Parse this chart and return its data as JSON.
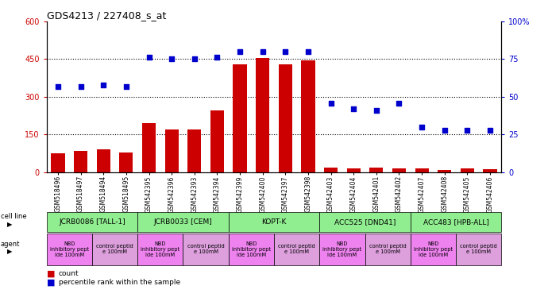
{
  "title": "GDS4213 / 227408_s_at",
  "samples": [
    "GSM518496",
    "GSM518497",
    "GSM518494",
    "GSM518495",
    "GSM542395",
    "GSM542396",
    "GSM542393",
    "GSM542394",
    "GSM542399",
    "GSM542400",
    "GSM542397",
    "GSM542398",
    "GSM542403",
    "GSM542404",
    "GSM542401",
    "GSM542402",
    "GSM542407",
    "GSM542408",
    "GSM542405",
    "GSM542406"
  ],
  "counts": [
    75,
    85,
    90,
    78,
    195,
    170,
    170,
    245,
    430,
    455,
    430,
    445,
    20,
    15,
    20,
    15,
    15,
    10,
    15,
    12
  ],
  "percentiles": [
    57,
    57,
    58,
    57,
    76,
    75,
    75,
    76,
    80,
    80,
    80,
    80,
    46,
    42,
    41,
    46,
    30,
    28,
    28,
    28
  ],
  "cell_lines": [
    {
      "label": "JCRB0086 [TALL-1]",
      "start": 0,
      "end": 4,
      "color": "#90EE90"
    },
    {
      "label": "JCRB0033 [CEM]",
      "start": 4,
      "end": 8,
      "color": "#90EE90"
    },
    {
      "label": "KOPT-K",
      "start": 8,
      "end": 12,
      "color": "#90EE90"
    },
    {
      "label": "ACC525 [DND41]",
      "start": 12,
      "end": 16,
      "color": "#90EE90"
    },
    {
      "label": "ACC483 [HPB-ALL]",
      "start": 16,
      "end": 20,
      "color": "#90EE90"
    }
  ],
  "agents": [
    {
      "label": "NBD\ninhibitory pept\nide 100mM",
      "start": 0,
      "end": 2,
      "color": "#EE82EE"
    },
    {
      "label": "control peptid\ne 100mM",
      "start": 2,
      "end": 4,
      "color": "#DDA0DD"
    },
    {
      "label": "NBD\ninhibitory pept\nide 100mM",
      "start": 4,
      "end": 6,
      "color": "#EE82EE"
    },
    {
      "label": "control peptid\ne 100mM",
      "start": 6,
      "end": 8,
      "color": "#DDA0DD"
    },
    {
      "label": "NBD\ninhibitory pept\nide 100mM",
      "start": 8,
      "end": 10,
      "color": "#EE82EE"
    },
    {
      "label": "control peptid\ne 100mM",
      "start": 10,
      "end": 12,
      "color": "#DDA0DD"
    },
    {
      "label": "NBD\ninhibitory pept\nide 100mM",
      "start": 12,
      "end": 14,
      "color": "#EE82EE"
    },
    {
      "label": "control peptid\ne 100mM",
      "start": 14,
      "end": 16,
      "color": "#DDA0DD"
    },
    {
      "label": "NBD\ninhibitory pept\nide 100mM",
      "start": 16,
      "end": 18,
      "color": "#EE82EE"
    },
    {
      "label": "control peptid\ne 100mM",
      "start": 18,
      "end": 20,
      "color": "#DDA0DD"
    }
  ],
  "ylim_left": [
    0,
    600
  ],
  "ylim_right": [
    0,
    100
  ],
  "yticks_left": [
    0,
    150,
    300,
    450,
    600
  ],
  "yticks_right": [
    0,
    25,
    50,
    75,
    100
  ],
  "bar_color": "#CC0000",
  "scatter_color": "#0000CC",
  "grid_lines": [
    150,
    300,
    450
  ]
}
